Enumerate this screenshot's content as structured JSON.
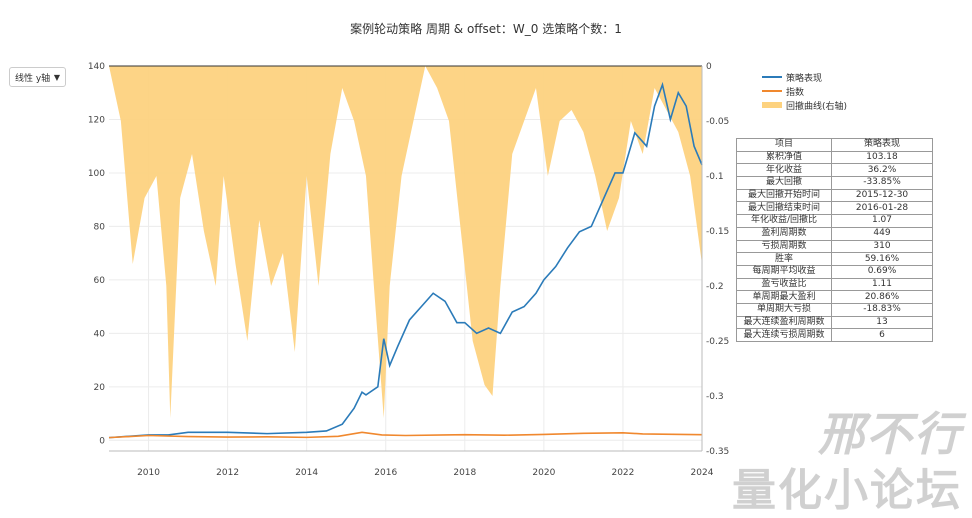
{
  "title": "案例轮动策略 周期 & offset：W_0 选策略个数：1",
  "y_axis_select": {
    "label": "线性 y轴",
    "icon": "caret-down-icon"
  },
  "legend": [
    {
      "name": "策略表现",
      "color": "#2b7bb9",
      "kind": "line"
    },
    {
      "name": "指数",
      "color": "#f0882e",
      "kind": "line"
    },
    {
      "name": "回撤曲线(右轴)",
      "color": "#fdd27f",
      "kind": "area"
    }
  ],
  "stats_table": {
    "headers": [
      "项目",
      "策略表现"
    ],
    "rows": [
      [
        "累积净值",
        "103.18"
      ],
      [
        "年化收益",
        "36.2%"
      ],
      [
        "最大回撤",
        "-33.85%"
      ],
      [
        "最大回撤开始时间",
        "2015-12-30"
      ],
      [
        "最大回撤结束时间",
        "2016-01-28"
      ],
      [
        "年化收益/回撤比",
        "1.07"
      ],
      [
        "盈利周期数",
        "449"
      ],
      [
        "亏损周期数",
        "310"
      ],
      [
        "胜率",
        "59.16%"
      ],
      [
        "每周期平均收益",
        "0.69%"
      ],
      [
        "盈亏收益比",
        "1.11"
      ],
      [
        "单周期最大盈利",
        "20.86%"
      ],
      [
        "单周期大亏损",
        "-18.83%"
      ],
      [
        "最大连续盈利周期数",
        "13"
      ],
      [
        "最大连续亏损周期数",
        "6"
      ]
    ]
  },
  "watermark": {
    "line1": "邢不行",
    "line2": "量化小论坛"
  },
  "chart_data": {
    "type": "line",
    "x_ticks": [
      "2010",
      "2012",
      "2014",
      "2016",
      "2018",
      "2020",
      "2022",
      "2024"
    ],
    "xlim": [
      2009.0,
      2024.0
    ],
    "y_left": {
      "ticks": [
        0,
        20,
        40,
        60,
        80,
        100,
        120,
        140
      ],
      "lim": [
        -4,
        140
      ]
    },
    "y_right": {
      "ticks": [
        0,
        -0.05,
        -0.1,
        -0.15,
        -0.2,
        -0.25,
        -0.3,
        -0.35
      ],
      "lim": [
        -0.35,
        0
      ]
    },
    "grid": true,
    "legend_position": "top-right",
    "series": [
      {
        "name": "策略表现",
        "axis": "left",
        "color": "#2b7bb9",
        "x": [
          2009.0,
          2010.0,
          2010.5,
          2011.0,
          2012.0,
          2013.0,
          2014.0,
          2014.5,
          2014.9,
          2015.2,
          2015.4,
          2015.5,
          2015.8,
          2015.95,
          2016.1,
          2016.3,
          2016.6,
          2016.9,
          2017.2,
          2017.5,
          2017.8,
          2018.0,
          2018.3,
          2018.6,
          2018.9,
          2019.2,
          2019.5,
          2019.8,
          2020.0,
          2020.3,
          2020.6,
          2020.9,
          2021.2,
          2021.5,
          2021.8,
          2022.0,
          2022.3,
          2022.6,
          2022.8,
          2023.0,
          2023.2,
          2023.4,
          2023.6,
          2023.8,
          2024.0
        ],
        "values": [
          1,
          2,
          2,
          3,
          3,
          2.5,
          3,
          3.5,
          6,
          12,
          18,
          17,
          20,
          38,
          28,
          35,
          45,
          50,
          55,
          52,
          44,
          44,
          40,
          42,
          40,
          48,
          50,
          55,
          60,
          65,
          72,
          78,
          80,
          90,
          100,
          100,
          115,
          110,
          125,
          133,
          120,
          130,
          125,
          110,
          103
        ]
      },
      {
        "name": "指数",
        "axis": "left",
        "color": "#f0882e",
        "x": [
          2009.0,
          2010.0,
          2011.0,
          2012.0,
          2013.0,
          2014.0,
          2014.8,
          2015.4,
          2015.9,
          2016.5,
          2017.5,
          2018.0,
          2019.0,
          2020.0,
          2021.0,
          2022.0,
          2022.5,
          2023.0,
          2024.0
        ],
        "values": [
          1,
          1.8,
          1.4,
          1.2,
          1.3,
          1.1,
          1.5,
          3.0,
          2.0,
          1.8,
          2.0,
          2.1,
          1.9,
          2.2,
          2.6,
          2.8,
          2.4,
          2.3,
          2.1
        ]
      },
      {
        "name": "回撤曲线(右轴)",
        "axis": "right",
        "color": "#fdd27f",
        "kind": "area",
        "x": [
          2009.0,
          2009.3,
          2009.6,
          2009.9,
          2010.2,
          2010.45,
          2010.55,
          2010.8,
          2011.1,
          2011.4,
          2011.7,
          2011.9,
          2012.2,
          2012.5,
          2012.8,
          2013.1,
          2013.4,
          2013.7,
          2014.0,
          2014.3,
          2014.6,
          2014.9,
          2015.2,
          2015.5,
          2015.7,
          2015.95,
          2016.1,
          2016.4,
          2016.7,
          2017.0,
          2017.3,
          2017.6,
          2017.9,
          2018.2,
          2018.5,
          2018.7,
          2018.9,
          2019.2,
          2019.5,
          2019.8,
          2020.1,
          2020.4,
          2020.7,
          2021.0,
          2021.3,
          2021.6,
          2021.9,
          2022.2,
          2022.5,
          2022.8,
          2023.1,
          2023.4,
          2023.7,
          2024.0
        ],
        "values": [
          0,
          -0.05,
          -0.18,
          -0.12,
          -0.1,
          -0.2,
          -0.32,
          -0.12,
          -0.08,
          -0.15,
          -0.2,
          -0.1,
          -0.18,
          -0.25,
          -0.14,
          -0.2,
          -0.17,
          -0.26,
          -0.1,
          -0.2,
          -0.08,
          -0.02,
          -0.05,
          -0.1,
          -0.2,
          -0.32,
          -0.2,
          -0.1,
          -0.05,
          0,
          -0.02,
          -0.05,
          -0.15,
          -0.25,
          -0.29,
          -0.3,
          -0.2,
          -0.08,
          -0.05,
          -0.02,
          -0.1,
          -0.05,
          -0.04,
          -0.06,
          -0.1,
          -0.15,
          -0.12,
          -0.05,
          -0.08,
          -0.02,
          -0.04,
          -0.06,
          -0.1,
          -0.18
        ]
      }
    ]
  }
}
